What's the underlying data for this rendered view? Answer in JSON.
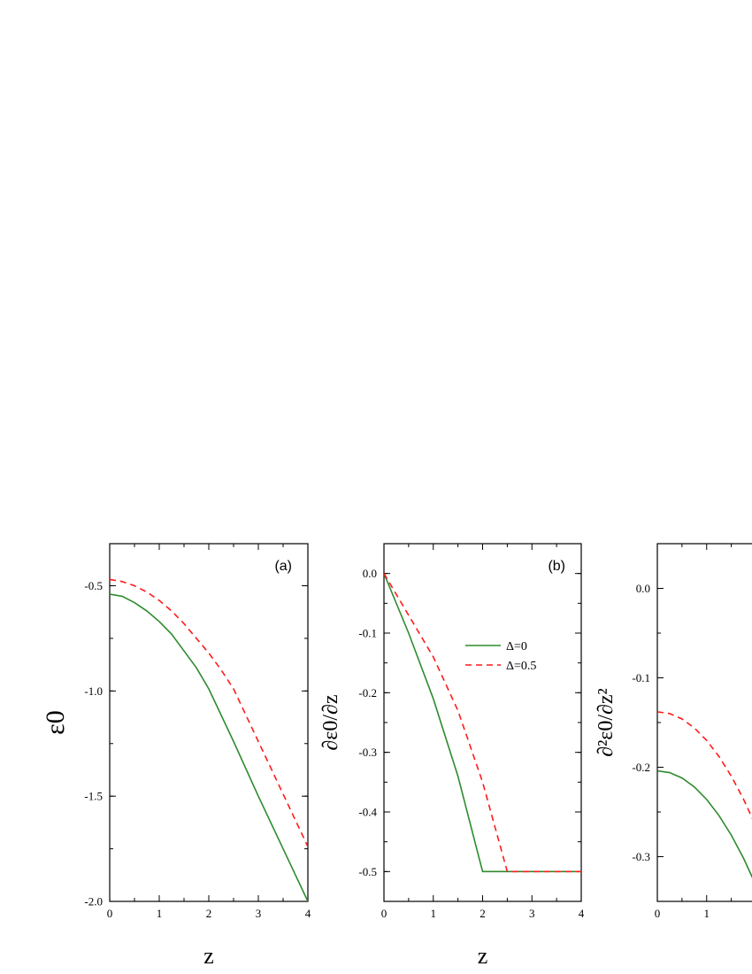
{
  "chart_data": [
    {
      "type": "line",
      "panel_label": "(a)",
      "xlabel": "z",
      "ylabel": "ε0",
      "xlim": [
        0,
        4
      ],
      "ylim": [
        -2.0,
        -0.3
      ],
      "xticks": [
        0,
        1,
        2,
        3,
        4
      ],
      "yticks": [
        -0.5,
        -1.0,
        -1.5,
        -2.0
      ],
      "ytick_labels": [
        "-0.5",
        "-1.0",
        "-1.5",
        "-2.0"
      ],
      "series": [
        {
          "name": "Δ=0",
          "color": "#2e8b2e",
          "dash": "solid",
          "x": [
            0,
            0.25,
            0.5,
            0.75,
            1.0,
            1.25,
            1.5,
            1.75,
            2.0,
            2.5,
            3.0,
            3.5,
            4.0
          ],
          "y": [
            -0.54,
            -0.55,
            -0.58,
            -0.62,
            -0.67,
            -0.73,
            -0.81,
            -0.89,
            -0.99,
            -1.24,
            -1.5,
            -1.75,
            -2.0
          ]
        },
        {
          "name": "Δ=0.5",
          "color": "#ff1a1a",
          "dash": "dashed",
          "x": [
            0,
            0.25,
            0.5,
            0.75,
            1.0,
            1.25,
            1.5,
            1.75,
            2.0,
            2.25,
            2.5,
            3.0,
            3.5,
            4.0
          ],
          "y": [
            -0.47,
            -0.48,
            -0.5,
            -0.53,
            -0.57,
            -0.62,
            -0.68,
            -0.75,
            -0.82,
            -0.9,
            -0.99,
            -1.24,
            -1.49,
            -1.74
          ]
        }
      ]
    },
    {
      "type": "line",
      "panel_label": "(b)",
      "xlabel": "z",
      "ylabel": "∂ε0/∂z",
      "xlim": [
        0,
        4
      ],
      "ylim": [
        -0.55,
        0.05
      ],
      "xticks": [
        0,
        1,
        2,
        3,
        4
      ],
      "yticks": [
        0.0,
        -0.1,
        -0.2,
        -0.3,
        -0.4,
        -0.5
      ],
      "ytick_labels": [
        "0.0",
        "-0.1",
        "-0.2",
        "-0.3",
        "-0.4",
        "-0.5"
      ],
      "legend": {
        "position": "upper-right",
        "entries": [
          "Δ=0",
          "Δ=0.5"
        ]
      },
      "series": [
        {
          "name": "Δ=0",
          "color": "#2e8b2e",
          "dash": "solid",
          "x": [
            0,
            0.5,
            1.0,
            1.5,
            2.0,
            4.0
          ],
          "y": [
            0.0,
            -0.1,
            -0.21,
            -0.34,
            -0.5,
            -0.5
          ]
        },
        {
          "name": "Δ=0.5",
          "color": "#ff1a1a",
          "dash": "dashed",
          "x": [
            0,
            0.5,
            1.0,
            1.5,
            2.0,
            2.5,
            4.0
          ],
          "y": [
            0.0,
            -0.07,
            -0.14,
            -0.23,
            -0.35,
            -0.5,
            -0.5
          ]
        }
      ]
    },
    {
      "type": "line",
      "panel_label": "",
      "xlabel": "",
      "ylabel": "∂²ε0/∂z²",
      "xlim": [
        0,
        4
      ],
      "ylim": [
        -0.35,
        0.05
      ],
      "xticks": [
        0,
        1
      ],
      "yticks": [
        0.0,
        -0.1,
        -0.2,
        -0.3
      ],
      "ytick_labels": [
        "0.0",
        "-0.1",
        "-0.2",
        "-0.3"
      ],
      "series": [
        {
          "name": "Δ=0",
          "color": "#2e8b2e",
          "dash": "solid",
          "x": [
            0,
            0.25,
            0.5,
            0.75,
            1.0,
            1.25,
            1.5,
            1.75,
            2.0
          ],
          "y": [
            -0.204,
            -0.206,
            -0.212,
            -0.222,
            -0.236,
            -0.254,
            -0.276,
            -0.302,
            -0.332
          ]
        },
        {
          "name": "Δ=0.5",
          "color": "#ff1a1a",
          "dash": "dashed",
          "x": [
            0,
            0.25,
            0.5,
            0.75,
            1.0,
            1.25,
            1.5,
            1.75,
            2.0
          ],
          "y": [
            -0.138,
            -0.14,
            -0.146,
            -0.156,
            -0.17,
            -0.188,
            -0.21,
            -0.236,
            -0.266
          ]
        }
      ]
    }
  ]
}
